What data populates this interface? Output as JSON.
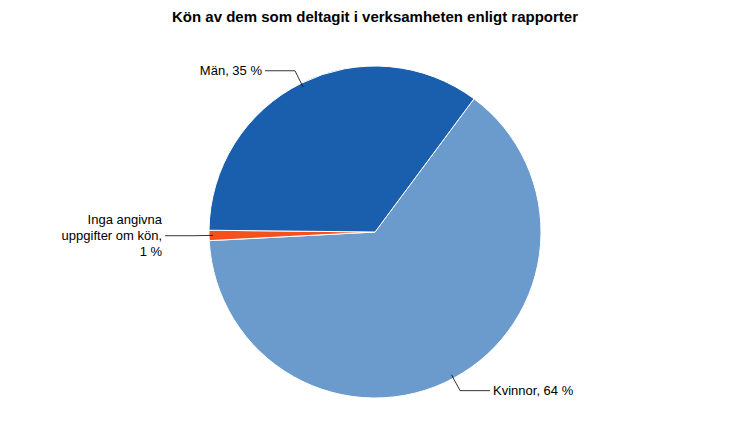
{
  "chart_data": {
    "type": "pie",
    "title": "Kön av dem som deltagit i verksamheten enligt rapporter",
    "categories": [
      "Kvinnor",
      "Inga angivna uppgifter om kön",
      "Män"
    ],
    "values": [
      64,
      1,
      35
    ],
    "value_labels": [
      "Kvinnor, 64 %",
      "Inga angivna uppgifter om kön, 1 %",
      "Män, 35 %"
    ],
    "colors": [
      "#6b9acd",
      "#f4511e",
      "#1a5fae"
    ],
    "data_labels": true
  }
}
